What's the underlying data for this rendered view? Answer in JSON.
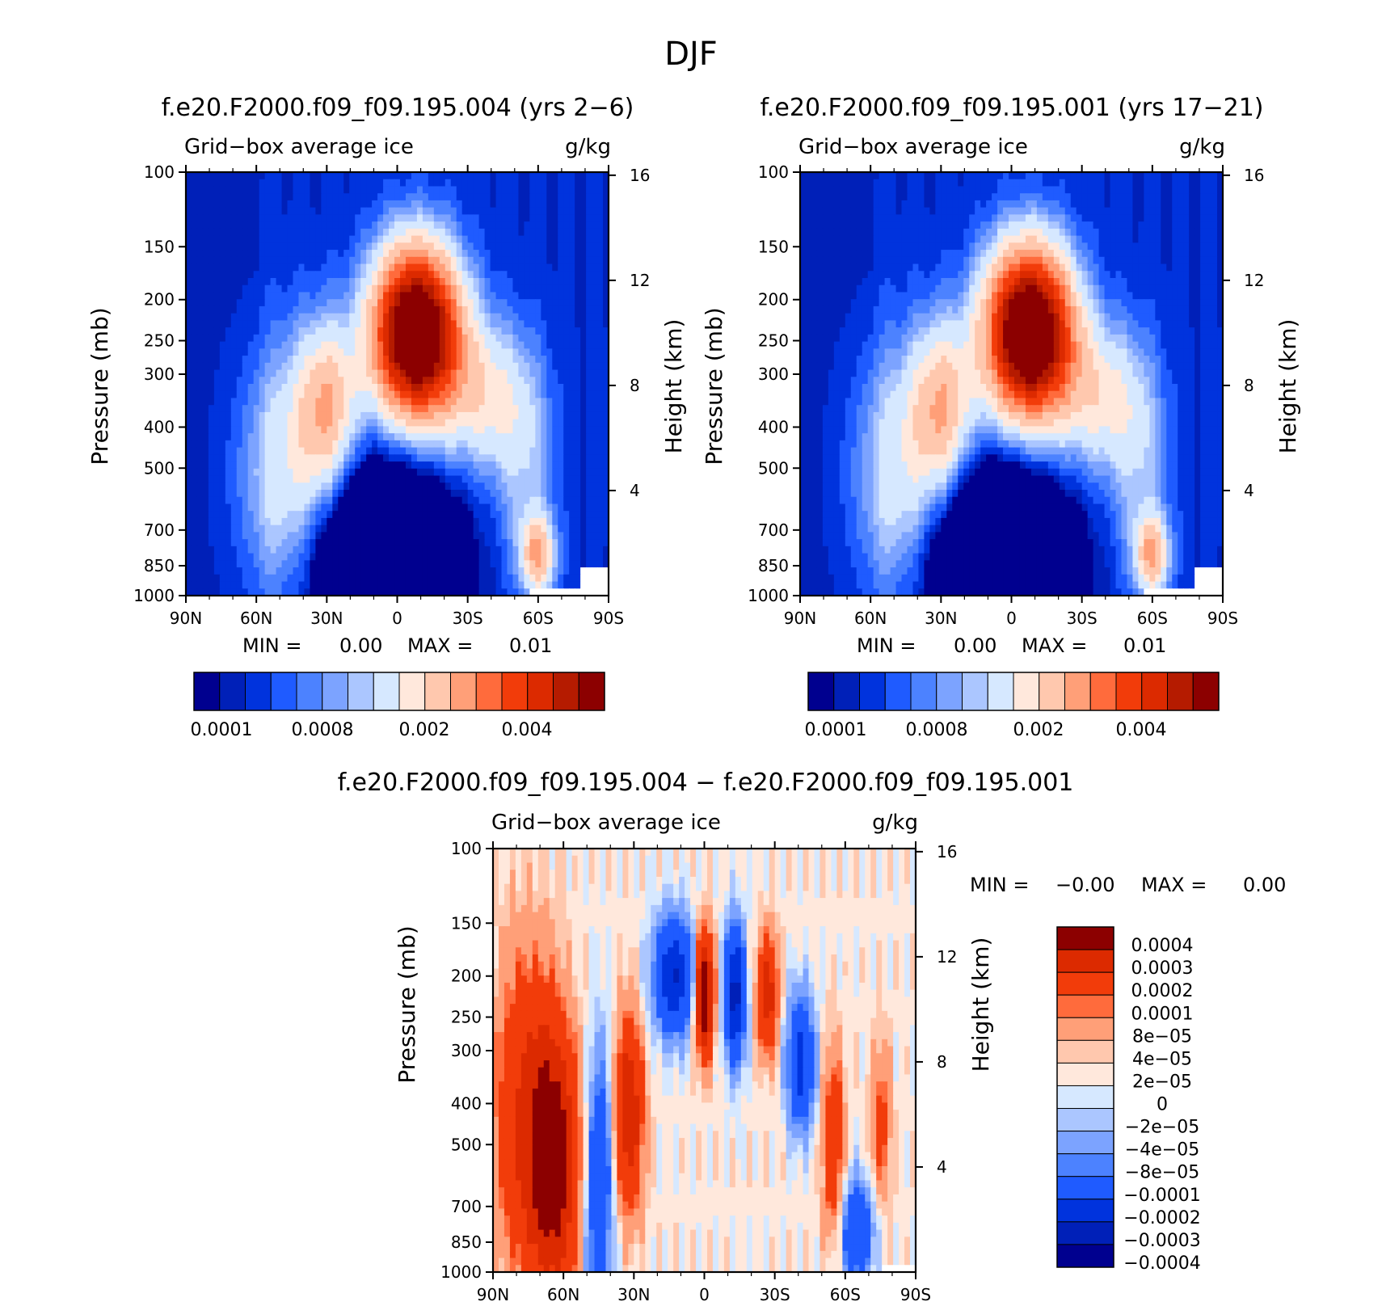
{
  "figure_title": "DJF",
  "colors": {
    "bins14": [
      "#00008f",
      "#0020b8",
      "#0033dd",
      "#1f5bff",
      "#4c82ff",
      "#7ca3ff",
      "#abc6ff",
      "#d6e8ff",
      "#ffe8dc",
      "#ffc8ae",
      "#ff9f78",
      "#ff6b3c",
      "#f23c0a",
      "#dc2a00",
      "#b51b00",
      "#8c0000"
    ],
    "diff": [
      "#00008f",
      "#0020b8",
      "#0033dd",
      "#1f5bff",
      "#4c82ff",
      "#7ca3ff",
      "#abc6ff",
      "#d6e8ff",
      "#ffe8dc",
      "#ffc8ae",
      "#ff9f78",
      "#ff6b3c",
      "#f23c0a",
      "#dc2a00",
      "#8c0000"
    ]
  },
  "chart_data": [
    {
      "type": "heatmap",
      "title": "f.e20.F2000.f09_f09.195.004 (yrs 2−6)",
      "subtitle_left": "Grid−box average ice",
      "subtitle_right": "g/kg",
      "ylabel": "Pressure (mb)",
      "ylabel_right": "Height (km)",
      "x_ticks": [
        "90N",
        "60N",
        "30N",
        "0",
        "30S",
        "60S",
        "90S"
      ],
      "y_ticks": [
        "100",
        "150",
        "200",
        "250",
        "300",
        "400",
        "500",
        "700",
        "850",
        "1000"
      ],
      "y_ticks_right": [
        "16",
        "12",
        "8",
        "4"
      ],
      "stats": {
        "min_label": "MIN =",
        "min": "0.00",
        "max_label": "MAX =",
        "max": "0.01"
      },
      "colorbar_labels": [
        "0.0001",
        "0.0008",
        "0.002",
        "0.004"
      ],
      "field": "ice_mean_A"
    },
    {
      "type": "heatmap",
      "title": "f.e20.F2000.f09_f09.195.001 (yrs 17−21)",
      "subtitle_left": "Grid−box average ice",
      "subtitle_right": "g/kg",
      "ylabel": "Pressure (mb)",
      "ylabel_right": "Height (km)",
      "x_ticks": [
        "90N",
        "60N",
        "30N",
        "0",
        "30S",
        "60S",
        "90S"
      ],
      "y_ticks": [
        "100",
        "150",
        "200",
        "250",
        "300",
        "400",
        "500",
        "700",
        "850",
        "1000"
      ],
      "y_ticks_right": [
        "16",
        "12",
        "8",
        "4"
      ],
      "stats": {
        "min_label": "MIN =",
        "min": "0.00",
        "max_label": "MAX =",
        "max": "0.01"
      },
      "colorbar_labels": [
        "0.0001",
        "0.0008",
        "0.002",
        "0.004"
      ],
      "field": "ice_mean_B"
    },
    {
      "type": "heatmap",
      "title": "f.e20.F2000.f09_f09.195.004 − f.e20.F2000.f09_f09.195.001",
      "subtitle_left": "Grid−box average ice",
      "subtitle_right": "g/kg",
      "ylabel": "Pressure (mb)",
      "ylabel_right": "Height (km)",
      "x_ticks": [
        "90N",
        "60N",
        "30N",
        "0",
        "30S",
        "60S",
        "90S"
      ],
      "y_ticks": [
        "100",
        "150",
        "200",
        "250",
        "300",
        "400",
        "500",
        "700",
        "850",
        "1000"
      ],
      "y_ticks_right": [
        "16",
        "12",
        "8",
        "4"
      ],
      "stats": {
        "min_label": "MIN =",
        "min": "−0.00",
        "max_label": "MAX =",
        "max": "0.00"
      },
      "colorbar_labels": [
        "0.0004",
        "0.0003",
        "0.0002",
        "0.0001",
        "8e−05",
        "4e−05",
        "2e−05",
        "0",
        "−2e−05",
        "−4e−05",
        "−8e−05",
        "−0.0001",
        "−0.0002",
        "−0.0003",
        "−0.0004"
      ],
      "field": "ice_diff"
    }
  ]
}
